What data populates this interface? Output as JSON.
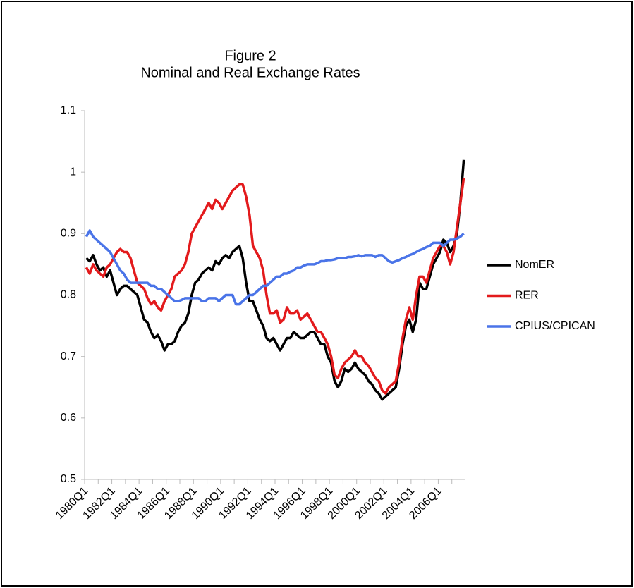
{
  "chart_data": {
    "type": "line",
    "title": "Figure 2",
    "subtitle": "Nominal and Real Exchange Rates",
    "categories": [
      "1980Q1",
      null,
      null,
      null,
      null,
      null,
      null,
      null,
      "1982Q1",
      null,
      null,
      null,
      null,
      null,
      null,
      null,
      "1984Q1",
      null,
      null,
      null,
      null,
      null,
      null,
      null,
      "1986Q1",
      null,
      null,
      null,
      null,
      null,
      null,
      null,
      "1988Q1",
      null,
      null,
      null,
      null,
      null,
      null,
      null,
      "1990Q1",
      null,
      null,
      null,
      null,
      null,
      null,
      null,
      "1992Q1",
      null,
      null,
      null,
      null,
      null,
      null,
      null,
      "1994Q1",
      null,
      null,
      null,
      null,
      null,
      null,
      null,
      "1996Q1",
      null,
      null,
      null,
      null,
      null,
      null,
      null,
      "1998Q1",
      null,
      null,
      null,
      null,
      null,
      null,
      null,
      "2000Q1",
      null,
      null,
      null,
      null,
      null,
      null,
      null,
      "2002Q1",
      null,
      null,
      null,
      null,
      null,
      null,
      null,
      "2004Q1",
      null,
      null,
      null,
      null,
      null,
      null,
      null,
      "2006Q1",
      null,
      null,
      null,
      null,
      null,
      null,
      null
    ],
    "series": [
      {
        "name": "NomER",
        "color": "#000000",
        "values": [
          0.86,
          0.855,
          0.865,
          0.85,
          0.84,
          0.845,
          0.83,
          0.84,
          0.82,
          0.8,
          0.81,
          0.815,
          0.815,
          0.81,
          0.805,
          0.8,
          0.78,
          0.76,
          0.755,
          0.74,
          0.73,
          0.735,
          0.725,
          0.71,
          0.72,
          0.72,
          0.725,
          0.74,
          0.75,
          0.755,
          0.77,
          0.8,
          0.82,
          0.825,
          0.835,
          0.84,
          0.845,
          0.84,
          0.855,
          0.85,
          0.86,
          0.865,
          0.86,
          0.87,
          0.875,
          0.88,
          0.86,
          0.82,
          0.79,
          0.79,
          0.775,
          0.76,
          0.75,
          0.73,
          0.725,
          0.73,
          0.72,
          0.71,
          0.72,
          0.73,
          0.73,
          0.74,
          0.735,
          0.73,
          0.73,
          0.735,
          0.74,
          0.74,
          0.73,
          0.72,
          0.72,
          0.7,
          0.69,
          0.66,
          0.65,
          0.66,
          0.68,
          0.675,
          0.68,
          0.69,
          0.68,
          0.675,
          0.67,
          0.66,
          0.655,
          0.645,
          0.64,
          0.63,
          0.635,
          0.64,
          0.645,
          0.65,
          0.68,
          0.72,
          0.75,
          0.76,
          0.74,
          0.76,
          0.82,
          0.81,
          0.81,
          0.83,
          0.85,
          0.86,
          0.87,
          0.89,
          0.885,
          0.87,
          0.88,
          0.9,
          0.95,
          1.02
        ]
      },
      {
        "name": "RER",
        "color": "#e31a1c",
        "values": [
          0.845,
          0.835,
          0.85,
          0.84,
          0.835,
          0.83,
          0.845,
          0.85,
          0.86,
          0.87,
          0.875,
          0.87,
          0.87,
          0.86,
          0.84,
          0.82,
          0.815,
          0.81,
          0.795,
          0.785,
          0.79,
          0.78,
          0.775,
          0.79,
          0.8,
          0.81,
          0.83,
          0.835,
          0.84,
          0.85,
          0.87,
          0.9,
          0.91,
          0.92,
          0.93,
          0.94,
          0.95,
          0.94,
          0.955,
          0.95,
          0.94,
          0.95,
          0.96,
          0.97,
          0.975,
          0.98,
          0.98,
          0.96,
          0.93,
          0.88,
          0.87,
          0.86,
          0.84,
          0.8,
          0.77,
          0.77,
          0.775,
          0.755,
          0.76,
          0.78,
          0.77,
          0.77,
          0.775,
          0.76,
          0.765,
          0.77,
          0.76,
          0.75,
          0.74,
          0.74,
          0.73,
          0.72,
          0.7,
          0.67,
          0.665,
          0.68,
          0.69,
          0.695,
          0.7,
          0.71,
          0.7,
          0.7,
          0.69,
          0.685,
          0.675,
          0.665,
          0.66,
          0.645,
          0.64,
          0.65,
          0.655,
          0.66,
          0.69,
          0.73,
          0.76,
          0.78,
          0.76,
          0.8,
          0.83,
          0.83,
          0.82,
          0.84,
          0.86,
          0.87,
          0.88,
          0.88,
          0.87,
          0.85,
          0.87,
          0.91,
          0.95,
          0.99
        ]
      },
      {
        "name": "CPIUS/CPICAN",
        "color": "#4a74e8",
        "values": [
          0.895,
          0.905,
          0.895,
          0.89,
          0.885,
          0.88,
          0.875,
          0.87,
          0.86,
          0.85,
          0.84,
          0.835,
          0.825,
          0.82,
          0.82,
          0.82,
          0.82,
          0.82,
          0.82,
          0.815,
          0.815,
          0.81,
          0.81,
          0.805,
          0.8,
          0.795,
          0.79,
          0.79,
          0.792,
          0.795,
          0.795,
          0.795,
          0.795,
          0.795,
          0.79,
          0.79,
          0.795,
          0.795,
          0.795,
          0.79,
          0.795,
          0.8,
          0.8,
          0.8,
          0.785,
          0.785,
          0.79,
          0.795,
          0.8,
          0.8,
          0.805,
          0.81,
          0.815,
          0.815,
          0.82,
          0.825,
          0.83,
          0.83,
          0.835,
          0.835,
          0.838,
          0.84,
          0.845,
          0.845,
          0.848,
          0.85,
          0.85,
          0.85,
          0.852,
          0.855,
          0.855,
          0.857,
          0.857,
          0.858,
          0.86,
          0.86,
          0.86,
          0.862,
          0.862,
          0.863,
          0.865,
          0.863,
          0.865,
          0.865,
          0.865,
          0.862,
          0.865,
          0.865,
          0.86,
          0.855,
          0.853,
          0.855,
          0.857,
          0.86,
          0.862,
          0.865,
          0.867,
          0.87,
          0.873,
          0.875,
          0.878,
          0.88,
          0.885,
          0.885,
          0.885,
          0.88,
          0.885,
          0.89,
          0.89,
          0.892,
          0.895,
          0.9
        ]
      }
    ],
    "ylim": [
      0.5,
      1.1
    ],
    "yticks": [
      0.5,
      0.6,
      0.7,
      0.8,
      0.9,
      1,
      1.1
    ],
    "grid": false,
    "legend": "right"
  }
}
